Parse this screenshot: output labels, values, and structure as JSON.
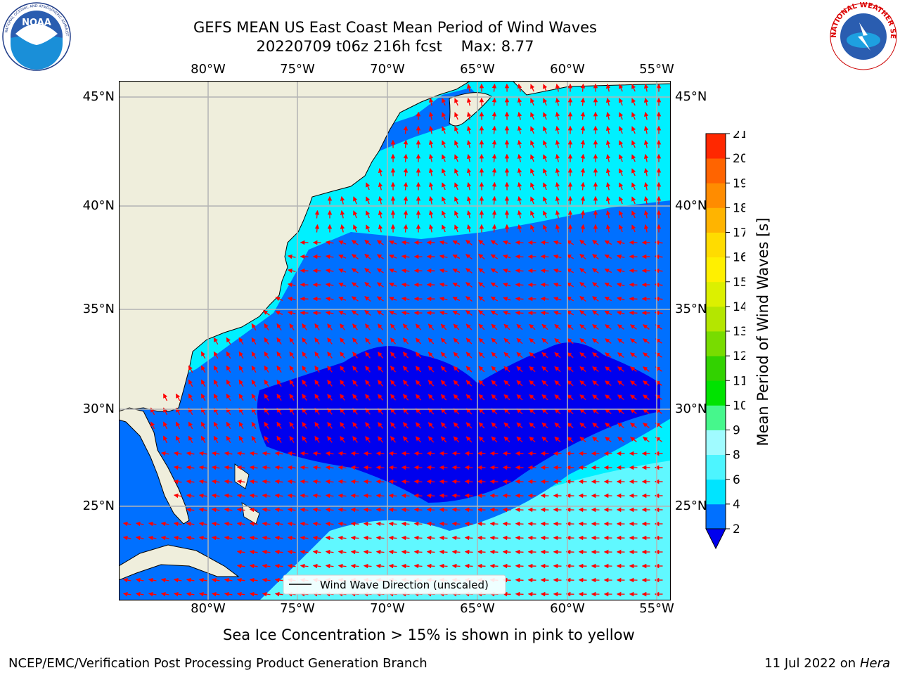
{
  "header": {
    "title_line1": "GEFS MEAN US East Coast Mean Period of Wind Waves",
    "title_line2": "20220709 t06z 216h fcst    Max: 8.77"
  },
  "logos": {
    "noaa_text": "NOAA",
    "noaa_ring": "NATIONAL OCEANIC AND ATMOSPHERIC ADMINISTRATION · U.S. DEPARTMENT OF COMMERCE",
    "nws_ring": "NATIONAL WEATHER SERVICE"
  },
  "map": {
    "lon_labels": [
      "80°W",
      "75°W",
      "70°W",
      "65°W",
      "60°W",
      "55°W"
    ],
    "lat_labels": [
      "45°N",
      "40°N",
      "35°N",
      "30°N",
      "25°N"
    ],
    "legend_label": "Wind Wave Direction (unscaled)"
  },
  "colorbar": {
    "label": "Mean Period of Wind Waves [s]",
    "ticks": [
      "2",
      "4",
      "6",
      "8",
      "9",
      "10",
      "11",
      "12",
      "13",
      "14",
      "15",
      "16",
      "17",
      "18",
      "19",
      "20",
      "21"
    ],
    "colors": [
      "#0070ff",
      "#00e4ff",
      "#4df5ff",
      "#a0fbff",
      "#46f78c",
      "#00e300",
      "#32d200",
      "#78dc00",
      "#b4e600",
      "#dcf000",
      "#fff000",
      "#ffdc00",
      "#ffb400",
      "#ff8c00",
      "#ff6400",
      "#ff2800"
    ],
    "extend_color": "#0000ee"
  },
  "footer": {
    "note": "Sea Ice Concentration > 15% is shown in pink to yellow",
    "credit": "NCEP/EMC/Verification Post Processing Product Generation Branch",
    "date_prefix": "11 Jul 2022 on ",
    "machine": "Hera"
  },
  "colors": {
    "land": "#efeedc",
    "ocean_low": "#0070ff",
    "ocean_mid": "#00f0ff",
    "ocean_light": "#60f8ff",
    "ocean_core": "#0000ee",
    "arrow": "#ff0000",
    "grid": "#b4b4b4"
  }
}
